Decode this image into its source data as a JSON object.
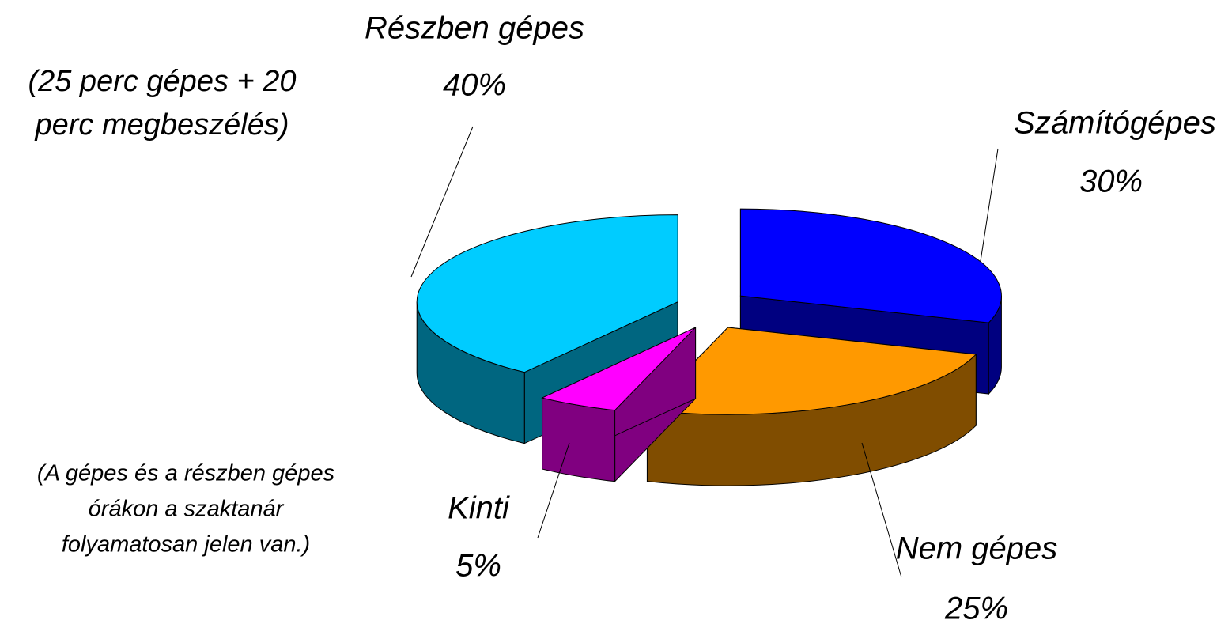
{
  "chart_data": {
    "type": "pie3d",
    "categories": [
      "Számítógépes",
      "Nem gépes",
      "Kinti",
      "Részben gépes"
    ],
    "values": [
      30,
      25,
      5,
      40
    ],
    "value_labels": [
      "30%",
      "25%",
      "5%",
      "40%"
    ],
    "colors": [
      "#0000ff",
      "#ff9900",
      "#ff00ff",
      "#00ccff"
    ],
    "annotations": [
      "(25 perc gépes + 20",
      "perc megbeszélés)",
      "(A gépes és a részben gépes",
      "órákon a szaktanár",
      "folyamatosan jelen van.)"
    ]
  }
}
